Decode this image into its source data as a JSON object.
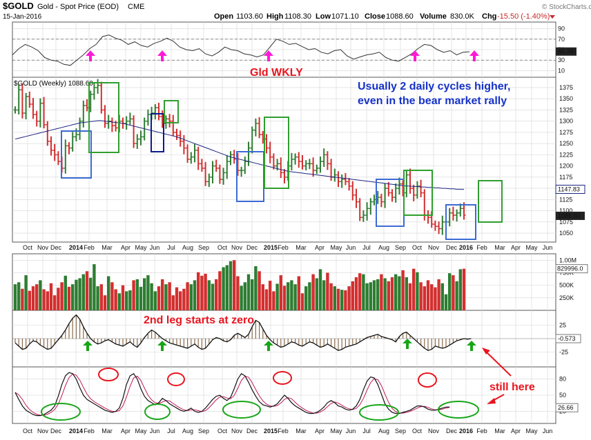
{
  "header": {
    "symbol": "$GOLD",
    "name": "Gold - Spot Price (EOD)",
    "exchange": "CME",
    "date": "15-Jan-2016",
    "open_label": "Open",
    "open": "1103.60",
    "high_label": "High",
    "high": "1108.30",
    "low_label": "Low",
    "low": "1071.10",
    "close_label": "Close",
    "close": "1088.60",
    "volume_label": "Volume",
    "volume": "830.0K",
    "chg_label": "Chg",
    "chg": "-15.50 (-1.40%)",
    "credit": "© StockCharts.com"
  },
  "colors": {
    "up": "#2e7d32",
    "down": "#d32f2f",
    "ma": "#1a237e",
    "blue_box": "#3a6ad4",
    "green_box": "#2e9e2e",
    "navy_box": "#0b1a8c",
    "annot_red": "#e8141e",
    "annot_blue": "#1632c8",
    "grid": "#d6d6d6"
  },
  "annotations": {
    "gld_wkly": "Gld WKLY",
    "blue_note_1": "Usually 2 daily cycles higher,",
    "blue_note_2": "even  in the bear market rally",
    "second_leg": "2nd leg starts at zero",
    "still_here": "still here"
  },
  "chart_data": [
    {
      "type": "line",
      "panel": "rsi",
      "y_ticks": [
        "90",
        "70",
        "50",
        "30",
        "10"
      ],
      "ylim": [
        0,
        100
      ],
      "last_value": "46.39",
      "values": [
        40,
        52,
        60,
        55,
        48,
        35,
        30,
        28,
        22,
        20,
        30,
        40,
        52,
        60,
        75,
        78,
        72,
        68,
        60,
        65,
        58,
        55,
        62,
        66,
        72,
        66,
        55,
        50,
        48,
        52,
        42,
        38,
        45,
        55,
        50,
        48,
        42,
        40,
        36,
        40,
        55,
        70,
        66,
        60,
        62,
        56,
        50,
        52,
        45,
        42,
        48,
        50,
        38,
        32,
        36,
        40,
        42,
        45,
        35,
        30,
        28,
        35,
        42,
        52,
        60,
        58,
        50,
        45,
        48,
        40,
        45,
        46
      ]
    },
    {
      "type": "candlestick",
      "panel": "price",
      "legend": "$GOLD (Weekly) 1088.60",
      "y_ticks": [
        "1375",
        "1350",
        "1325",
        "1300",
        "1275",
        "1250",
        "1225",
        "1200",
        "1175",
        "1150",
        "1125",
        "1100",
        "1075",
        "1050"
      ],
      "ylim": [
        1030,
        1395
      ],
      "last_close": "1088.60",
      "ma_last": "1147.83",
      "x_ticks": [
        "Oct",
        "Nov",
        "Dec",
        "2014",
        "Feb",
        "Mar",
        "Apr",
        "May",
        "Jun",
        "Jul",
        "Aug",
        "Sep",
        "Oct",
        "Nov",
        "Dec",
        "2015",
        "Feb",
        "Mar",
        "Apr",
        "May",
        "Jun",
        "Jul",
        "Aug",
        "Sep",
        "Oct",
        "Nov",
        "Dec",
        "2016",
        "Feb",
        "Mar",
        "Apr",
        "May",
        "Jun"
      ],
      "closes": [
        1325,
        1370,
        1318,
        1355,
        1338,
        1315,
        1300,
        1340,
        1292,
        1255,
        1235,
        1225,
        1210,
        1195,
        1245,
        1240,
        1265,
        1270,
        1300,
        1335,
        1330,
        1360,
        1375,
        1380,
        1325,
        1295,
        1300,
        1290,
        1285,
        1300,
        1295,
        1300,
        1305,
        1250,
        1260,
        1265,
        1300,
        1315,
        1318,
        1330,
        1310,
        1295,
        1305,
        1300,
        1275,
        1268,
        1255,
        1240,
        1215,
        1220,
        1235,
        1205,
        1195,
        1165,
        1175,
        1200,
        1195,
        1170,
        1185,
        1210,
        1225,
        1215,
        1190,
        1190,
        1210,
        1240,
        1280,
        1295,
        1270,
        1260,
        1240,
        1220,
        1200,
        1205,
        1185,
        1175,
        1200,
        1215,
        1220,
        1210,
        1200,
        1205,
        1205,
        1190,
        1195,
        1210,
        1225,
        1205,
        1175,
        1180,
        1165,
        1170,
        1165,
        1155,
        1135,
        1120,
        1085,
        1090,
        1105,
        1120,
        1125,
        1130,
        1120,
        1150,
        1140,
        1130,
        1150,
        1160,
        1140,
        1180,
        1150,
        1135,
        1155,
        1140,
        1090,
        1085,
        1070,
        1065,
        1060,
        1075,
        1075,
        1095,
        1090,
        1095,
        1105,
        1090
      ],
      "ma": [
        1260,
        1262,
        1264,
        1266,
        1268,
        1270,
        1272,
        1274,
        1276,
        1278,
        1280,
        1282,
        1284,
        1286,
        1288,
        1290,
        1292,
        1294,
        1296,
        1297,
        1298,
        1299,
        1300,
        1301,
        1301,
        1300,
        1299,
        1298,
        1297,
        1296,
        1295,
        1293,
        1291,
        1289,
        1287,
        1285,
        1283,
        1281,
        1279,
        1277,
        1275,
        1273,
        1271,
        1269,
        1267,
        1265,
        1262,
        1259,
        1256,
        1253,
        1250,
        1247,
        1244,
        1241,
        1238,
        1235,
        1232,
        1229,
        1226,
        1223,
        1220,
        1218,
        1216,
        1214,
        1212,
        1210,
        1208,
        1206,
        1204,
        1202,
        1200,
        1198,
        1196,
        1194,
        1192,
        1190,
        1188,
        1187,
        1186,
        1185,
        1184,
        1183,
        1182,
        1181,
        1180,
        1179,
        1178,
        1177,
        1176,
        1175,
        1174,
        1173,
        1172,
        1171,
        1170,
        1169,
        1168,
        1167,
        1166,
        1165,
        1164,
        1163,
        1162,
        1161,
        1160,
        1159,
        1158,
        1157,
        1156,
        1155,
        1155,
        1154,
        1154,
        1153,
        1153,
        1152,
        1152,
        1151,
        1151,
        1150,
        1150,
        1149,
        1149,
        1148,
        1148,
        1147.83
      ]
    },
    {
      "type": "bar",
      "panel": "volume",
      "y_ticks": [
        "1.00M",
        "750K",
        "500K",
        "250K"
      ],
      "ylim": [
        0,
        1100000
      ],
      "last_value": "829996.0",
      "values": [
        520000,
        560000,
        430000,
        700000,
        390000,
        480000,
        520000,
        600000,
        420000,
        380000,
        540000,
        300000,
        450000,
        560000,
        690000,
        470000,
        520000,
        610000,
        640000,
        720000,
        780000,
        650000,
        920000,
        480000,
        520000,
        300000,
        680000,
        560000,
        420000,
        340000,
        500000,
        380000,
        400000,
        600000,
        620000,
        470000,
        640000,
        700000,
        540000,
        380000,
        480000,
        620000,
        520000,
        560000,
        300000,
        460000,
        380000,
        430000,
        560000,
        520000,
        600000,
        760000,
        690000,
        730000,
        600000,
        530000,
        620000,
        780000,
        860000,
        900000,
        980000,
        1000000,
        680000,
        490000,
        560000,
        720000,
        620000,
        880000,
        780000,
        520000,
        420000,
        590000,
        380000,
        530000,
        700000,
        490000,
        560000,
        600000,
        520000,
        680000,
        340000,
        480000,
        560000,
        720000,
        640000,
        820000,
        600000,
        750000,
        540000,
        480000,
        430000,
        410000,
        400000,
        480000,
        580000,
        660000,
        740000,
        720000,
        540000,
        560000,
        600000,
        620000,
        720000,
        640000,
        580000,
        660000,
        720000,
        680000,
        800000,
        660000,
        540000,
        830000,
        760000,
        560000,
        480000,
        600000,
        520000,
        460000,
        620000,
        540000,
        320000,
        740000,
        700000,
        580000,
        820000,
        829996
      ]
    },
    {
      "type": "area",
      "panel": "oscillator",
      "y_ticks": [
        "25",
        "-25"
      ],
      "ylim": [
        -50,
        50
      ],
      "last_value": "-0.573"
    },
    {
      "type": "line",
      "panel": "stochastic",
      "y_ticks": [
        "80",
        "50",
        "20"
      ],
      "ylim": [
        0,
        100
      ],
      "last_value": "26.66"
    }
  ]
}
